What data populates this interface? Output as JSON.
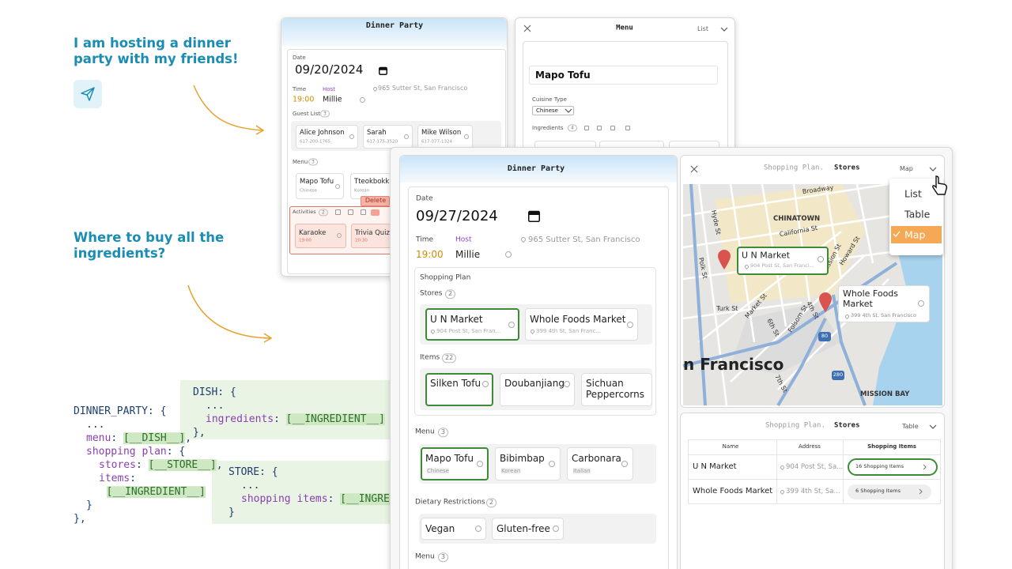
{
  "intro": {
    "prompt": "I am hosting a dinner party with my friends!",
    "question": "Where to buy all the ingredients?"
  },
  "schema": {
    "dinner_party": [
      [
        "DINNER_PARTY: {"
      ],
      [
        "..."
      ],
      [
        "menu",
        ": ",
        "[__DISH__]",
        ","
      ],
      [
        "shopping plan",
        ": {"
      ],
      [
        "stores",
        ": ",
        "[__STORE__]",
        ","
      ],
      [
        "items",
        ":"
      ],
      [
        "[__INGREDIENT__]"
      ],
      [
        "}"
      ],
      [
        "},"
      ]
    ],
    "dish": [
      [
        "DISH: {"
      ],
      [
        "..."
      ],
      [
        "ingredients",
        ": ",
        "[__INGREDIENT__]"
      ],
      [
        "},"
      ]
    ],
    "store": [
      [
        "STORE: {"
      ],
      [
        "..."
      ],
      [
        "shopping items",
        ": ",
        "[__INGREDIENT__]"
      ],
      [
        "}"
      ]
    ]
  },
  "back_form": {
    "title": "Dinner Party",
    "date_label": "Date",
    "date": "09/20/2024",
    "time_label": "Time",
    "host_label": "Host",
    "address": "965 Sutter St, San Francisco",
    "time": "19:00",
    "host": "Millie",
    "guest_list_label": "Guest List",
    "guest_count": 3,
    "guests": [
      {
        "name": "Alice Johnson",
        "phone": "617-200-1765"
      },
      {
        "name": "Sarah",
        "phone": "617-175-3520"
      },
      {
        "name": "Mike Wilson",
        "phone": "617-077-1324"
      }
    ],
    "menu_label": "Menu",
    "menu_count": 3,
    "menu": [
      {
        "name": "Mapo Tofu",
        "cuisine": "Chinese"
      },
      {
        "name": "Tteokbokki",
        "cuisine": "Korean"
      }
    ],
    "delete": "Delete",
    "activities_label": "Activities",
    "activities_count": 2,
    "activities": [
      {
        "name": "Karaoke",
        "time": "19:00"
      },
      {
        "name": "Trivia Quiz",
        "time": "20:30"
      }
    ]
  },
  "menu_panel": {
    "title": "Menu",
    "view": "List",
    "dish": "Mapo Tofu",
    "cuisine_label": "Cuisine Type",
    "cuisine": "Chinese",
    "ingredients_label": "Ingredients",
    "ingredients_count": 4
  },
  "front_form": {
    "title": "Dinner Party",
    "date_label": "Date",
    "date": "09/27/2024",
    "time_label": "Time",
    "host_label": "Host",
    "address": "965 Sutter St, San Francisco",
    "time": "19:00",
    "host": "Millie",
    "shopping_plan_label": "Shopping Plan",
    "stores_label": "Stores",
    "stores_count": 2,
    "stores": [
      {
        "name": "U N Market",
        "address": "904 Post St, San Fran..."
      },
      {
        "name": "Whole Foods Market",
        "address": "399 4th St, San Franc..."
      }
    ],
    "items_label": "Items",
    "items_count": 22,
    "items": [
      "Silken Tofu",
      "Doubanjiang",
      "Sichuan Peppercorns"
    ],
    "menu_label": "Menu",
    "menu_count": 3,
    "menu": [
      {
        "name": "Mapo Tofu",
        "cuisine": "Chinese"
      },
      {
        "name": "Bibimbap",
        "cuisine": "Korean"
      },
      {
        "name": "Carbonara",
        "cuisine": "Italian"
      }
    ],
    "dietary_label": "Dietary Restrictions",
    "dietary_count": 2,
    "dietary": [
      "Vegan",
      "Gluten-free"
    ],
    "menu2_label": "Menu",
    "menu2_count": 3
  },
  "map_panel": {
    "title": "Shopping Plan.",
    "entity": "Stores",
    "view": "Map",
    "view_options": [
      "List",
      "Table",
      "Map"
    ],
    "streets": [
      "Broadway",
      "CHINATOWN",
      "California St",
      "Hyde St",
      "Polk St",
      "Turk St",
      "Market St",
      "4th St",
      "Folsom St",
      "6th St",
      "Mission St",
      "Howard St",
      "7th St",
      "n Francisco",
      "MISSION BAY"
    ],
    "highways": [
      "80",
      "280"
    ],
    "markers": [
      {
        "name": "U N Market",
        "address": "904 Post St, San Franci..."
      },
      {
        "name": "Whole Foods Market",
        "address": "399 4th St, San Francisco"
      }
    ]
  },
  "table_panel": {
    "title": "Shopping Plan.",
    "entity": "Stores",
    "view": "Table",
    "columns": [
      "Name",
      "Address",
      "Shopping Items"
    ],
    "rows": [
      [
        "U N Market",
        "904 Post St, Sa...",
        "16 Shopping Items"
      ],
      [
        "Whole Foods Market",
        "399 4th St, Sa...",
        "6 Shopping Items"
      ]
    ]
  }
}
